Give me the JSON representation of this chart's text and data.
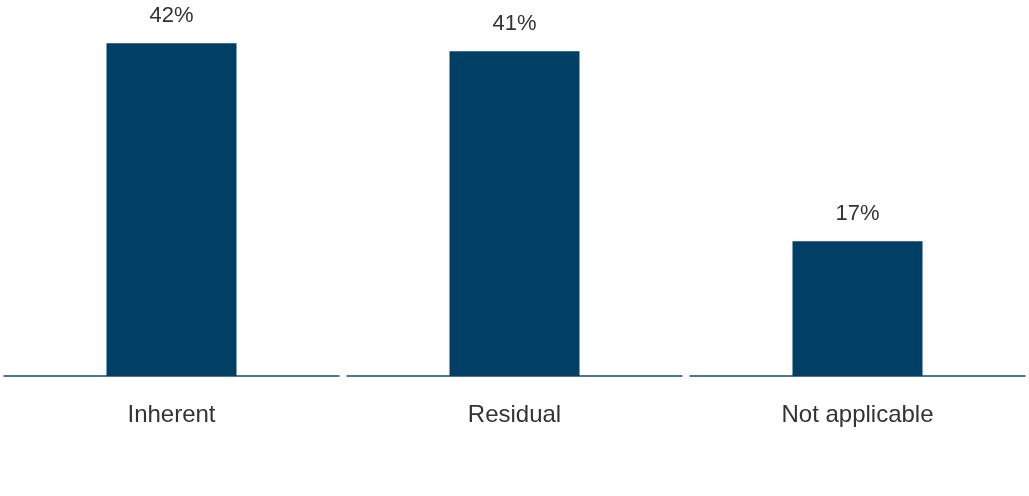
{
  "chart_data": {
    "type": "bar",
    "categories": [
      "Inherent",
      "Residual",
      "Not applicable"
    ],
    "values": [
      42,
      41,
      17
    ],
    "value_labels": [
      "42%",
      "41%",
      "17%"
    ],
    "color": "#003f66",
    "grid": false
  }
}
